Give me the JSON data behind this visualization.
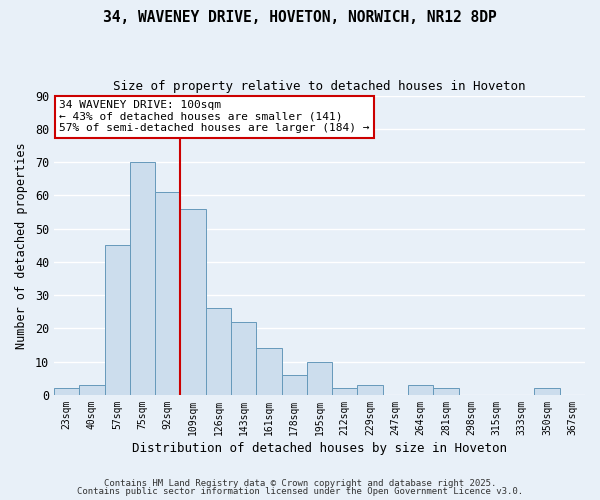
{
  "title": "34, WAVENEY DRIVE, HOVETON, NORWICH, NR12 8DP",
  "subtitle": "Size of property relative to detached houses in Hoveton",
  "xlabel": "Distribution of detached houses by size in Hoveton",
  "ylabel": "Number of detached properties",
  "bar_color": "#ccdded",
  "bar_edge_color": "#6699bb",
  "background_color": "#e8f0f8",
  "grid_color": "#ffffff",
  "categories": [
    "23sqm",
    "40sqm",
    "57sqm",
    "75sqm",
    "92sqm",
    "109sqm",
    "126sqm",
    "143sqm",
    "161sqm",
    "178sqm",
    "195sqm",
    "212sqm",
    "229sqm",
    "247sqm",
    "264sqm",
    "281sqm",
    "298sqm",
    "315sqm",
    "333sqm",
    "350sqm",
    "367sqm"
  ],
  "values": [
    2,
    3,
    45,
    70,
    61,
    56,
    26,
    22,
    14,
    6,
    10,
    2,
    3,
    0,
    3,
    2,
    0,
    0,
    0,
    2,
    0
  ],
  "ylim": [
    0,
    90
  ],
  "yticks": [
    0,
    10,
    20,
    30,
    40,
    50,
    60,
    70,
    80,
    90
  ],
  "vline_x": 4.5,
  "vline_color": "#cc0000",
  "annotation_title": "34 WAVENEY DRIVE: 100sqm",
  "annotation_line1": "← 43% of detached houses are smaller (141)",
  "annotation_line2": "57% of semi-detached houses are larger (184) →",
  "annotation_box_color": "#ffffff",
  "annotation_box_edge": "#cc0000",
  "footer1": "Contains HM Land Registry data © Crown copyright and database right 2025.",
  "footer2": "Contains public sector information licensed under the Open Government Licence v3.0."
}
